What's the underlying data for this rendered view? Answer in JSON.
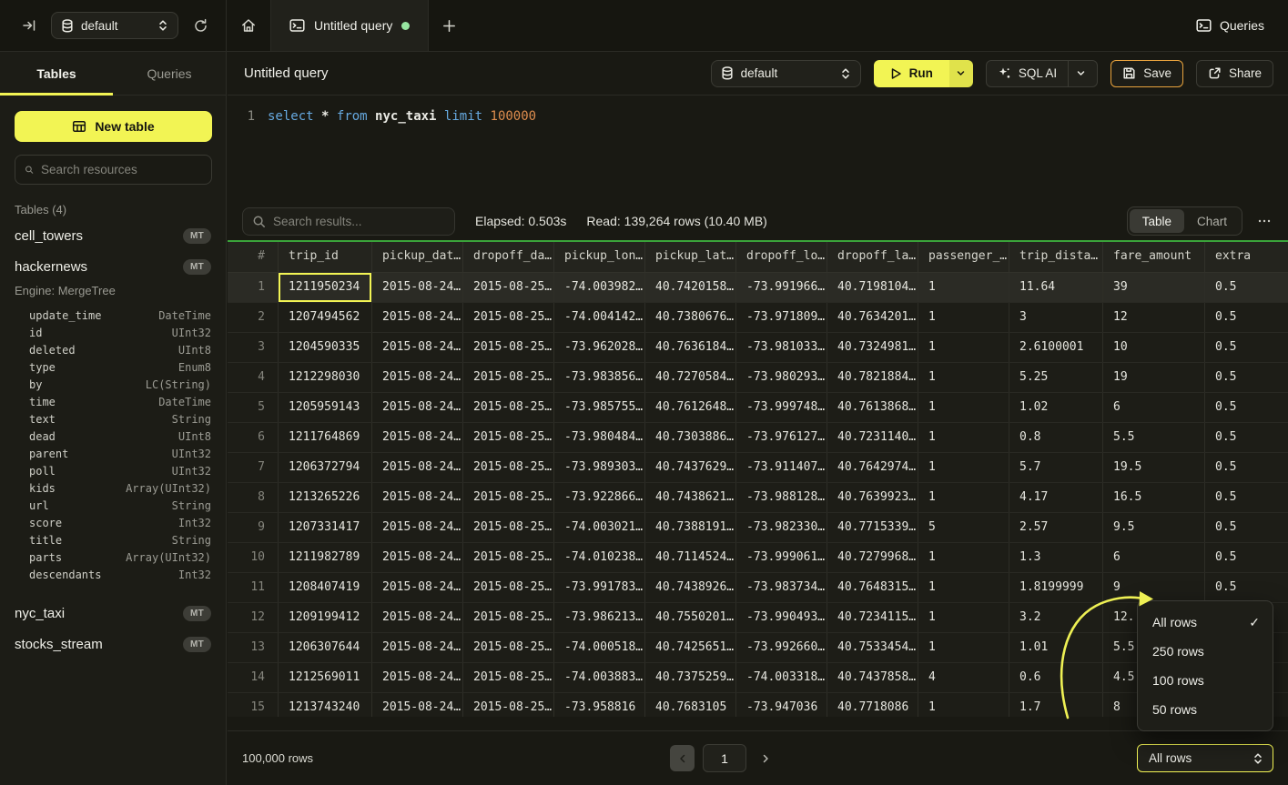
{
  "topbar": {
    "database_select": "default",
    "tab_title": "Untitled query",
    "queries_label": "Queries"
  },
  "sidebar": {
    "tabs": [
      "Tables",
      "Queries"
    ],
    "new_table_label": "New table",
    "search_placeholder": "Search resources",
    "section_label": "Tables (4)",
    "tables": [
      {
        "name": "cell_towers",
        "badge": "MT"
      },
      {
        "name": "hackernews",
        "badge": "MT",
        "engine": "Engine: MergeTree",
        "columns": [
          {
            "name": "update_time",
            "type": "DateTime"
          },
          {
            "name": "id",
            "type": "UInt32"
          },
          {
            "name": "deleted",
            "type": "UInt8"
          },
          {
            "name": "type",
            "type": "Enum8"
          },
          {
            "name": "by",
            "type": "LC(String)"
          },
          {
            "name": "time",
            "type": "DateTime"
          },
          {
            "name": "text",
            "type": "String"
          },
          {
            "name": "dead",
            "type": "UInt8"
          },
          {
            "name": "parent",
            "type": "UInt32"
          },
          {
            "name": "poll",
            "type": "UInt32"
          },
          {
            "name": "kids",
            "type": "Array(UInt32)"
          },
          {
            "name": "url",
            "type": "String"
          },
          {
            "name": "score",
            "type": "Int32"
          },
          {
            "name": "title",
            "type": "String"
          },
          {
            "name": "parts",
            "type": "Array(UInt32)"
          },
          {
            "name": "descendants",
            "type": "Int32"
          }
        ]
      },
      {
        "name": "nyc_taxi",
        "badge": "MT"
      },
      {
        "name": "stocks_stream",
        "badge": "MT"
      }
    ]
  },
  "query": {
    "title": "Untitled query",
    "database_select": "default",
    "run_label": "Run",
    "sql_ai_label": "SQL AI",
    "save_label": "Save",
    "share_label": "Share",
    "code": {
      "line_number": "1",
      "tokens": [
        {
          "text": "select",
          "type": "kw"
        },
        {
          "text": "*",
          "type": "id"
        },
        {
          "text": "from",
          "type": "kw"
        },
        {
          "text": "nyc_taxi",
          "type": "id"
        },
        {
          "text": "limit",
          "type": "kw"
        },
        {
          "text": "100000",
          "type": "num"
        }
      ]
    }
  },
  "results": {
    "search_placeholder": "Search results...",
    "elapsed": "Elapsed: 0.503s",
    "read": "Read: 139,264 rows (10.40 MB)",
    "view_tabs": [
      "Table",
      "Chart"
    ],
    "active_view": "Table"
  },
  "table": {
    "columns": [
      "#",
      "trip_id",
      "pickup_dat…",
      "dropoff_da…",
      "pickup_lon…",
      "pickup_lat…",
      "dropoff_lo…",
      "dropoff_la…",
      "passenger_…",
      "trip_dista…",
      "fare_amount",
      "extra"
    ],
    "rows": [
      {
        "n": "1",
        "cells": [
          "1211950234",
          "2015-08-24…",
          "2015-08-25…",
          "-74.003982…",
          "40.7420158…",
          "-73.991966…",
          "40.7198104…",
          "1",
          "11.64",
          "39",
          "0.5"
        ]
      },
      {
        "n": "2",
        "cells": [
          "1207494562",
          "2015-08-24…",
          "2015-08-25…",
          "-74.004142…",
          "40.7380676…",
          "-73.971809…",
          "40.7634201…",
          "1",
          "3",
          "12",
          "0.5"
        ]
      },
      {
        "n": "3",
        "cells": [
          "1204590335",
          "2015-08-24…",
          "2015-08-25…",
          "-73.962028…",
          "40.7636184…",
          "-73.981033…",
          "40.7324981…",
          "1",
          "2.6100001",
          "10",
          "0.5"
        ]
      },
      {
        "n": "4",
        "cells": [
          "1212298030",
          "2015-08-24…",
          "2015-08-25…",
          "-73.983856…",
          "40.7270584…",
          "-73.980293…",
          "40.7821884…",
          "1",
          "5.25",
          "19",
          "0.5"
        ]
      },
      {
        "n": "5",
        "cells": [
          "1205959143",
          "2015-08-24…",
          "2015-08-25…",
          "-73.985755…",
          "40.7612648…",
          "-73.999748…",
          "40.7613868…",
          "1",
          "1.02",
          "6",
          "0.5"
        ]
      },
      {
        "n": "6",
        "cells": [
          "1211764869",
          "2015-08-24…",
          "2015-08-25…",
          "-73.980484…",
          "40.7303886…",
          "-73.976127…",
          "40.7231140…",
          "1",
          "0.8",
          "5.5",
          "0.5"
        ]
      },
      {
        "n": "7",
        "cells": [
          "1206372794",
          "2015-08-24…",
          "2015-08-25…",
          "-73.989303…",
          "40.7437629…",
          "-73.911407…",
          "40.7642974…",
          "1",
          "5.7",
          "19.5",
          "0.5"
        ]
      },
      {
        "n": "8",
        "cells": [
          "1213265226",
          "2015-08-24…",
          "2015-08-25…",
          "-73.922866…",
          "40.7438621…",
          "-73.988128…",
          "40.7639923…",
          "1",
          "4.17",
          "16.5",
          "0.5"
        ]
      },
      {
        "n": "9",
        "cells": [
          "1207331417",
          "2015-08-24…",
          "2015-08-25…",
          "-74.003021…",
          "40.7388191…",
          "-73.982330…",
          "40.7715339…",
          "5",
          "2.57",
          "9.5",
          "0.5"
        ]
      },
      {
        "n": "10",
        "cells": [
          "1211982789",
          "2015-08-24…",
          "2015-08-25…",
          "-74.010238…",
          "40.7114524…",
          "-73.999061…",
          "40.7279968…",
          "1",
          "1.3",
          "6",
          "0.5"
        ]
      },
      {
        "n": "11",
        "cells": [
          "1208407419",
          "2015-08-24…",
          "2015-08-25…",
          "-73.991783…",
          "40.7438926…",
          "-73.983734…",
          "40.7648315…",
          "1",
          "1.8199999",
          "9",
          "0.5"
        ]
      },
      {
        "n": "12",
        "cells": [
          "1209199412",
          "2015-08-24…",
          "2015-08-25…",
          "-73.986213…",
          "40.7550201…",
          "-73.990493…",
          "40.7234115…",
          "1",
          "3.2",
          "12.",
          ""
        ]
      },
      {
        "n": "13",
        "cells": [
          "1206307644",
          "2015-08-24…",
          "2015-08-25…",
          "-74.000518…",
          "40.7425651…",
          "-73.992660…",
          "40.7533454…",
          "1",
          "1.01",
          "5.5",
          ""
        ]
      },
      {
        "n": "14",
        "cells": [
          "1212569011",
          "2015-08-24…",
          "2015-08-25…",
          "-74.003883…",
          "40.7375259…",
          "-74.003318…",
          "40.7437858…",
          "4",
          "0.6",
          "4.5",
          ""
        ]
      },
      {
        "n": "15",
        "cells": [
          "1213743240",
          "2015-08-24…",
          "2015-08-25…",
          "-73.958816",
          "40.7683105",
          "-73.947036",
          "40.7718086",
          "1",
          "1.7",
          "8",
          ""
        ]
      }
    ]
  },
  "footer": {
    "row_count": "100,000 rows",
    "page": "1",
    "page_size_select": "All rows"
  },
  "page_size_menu": {
    "items": [
      {
        "label": "All rows",
        "checked": true
      },
      {
        "label": "250 rows",
        "checked": false
      },
      {
        "label": "100 rows",
        "checked": false
      },
      {
        "label": "50 rows",
        "checked": false
      }
    ]
  },
  "icons": {
    "collapse-sidebar": "arrow-to-bar",
    "database": "cylinder",
    "refresh": "circular-arrow",
    "home": "house",
    "terminal": "console-window",
    "search": "magnifier",
    "new-table": "table-grid",
    "run": "play-triangle",
    "sql-ai": "sparkle",
    "save": "floppy-disk",
    "share": "external-link",
    "check": "✓"
  },
  "colors": {
    "accent_yellow": "#f2f454",
    "save_border": "#e8a33d",
    "tab_green_dot": "#97e6a1",
    "results_green_bar": "#3aa33a",
    "sql_keyword": "#66a9e0",
    "sql_number": "#de8d4e"
  }
}
